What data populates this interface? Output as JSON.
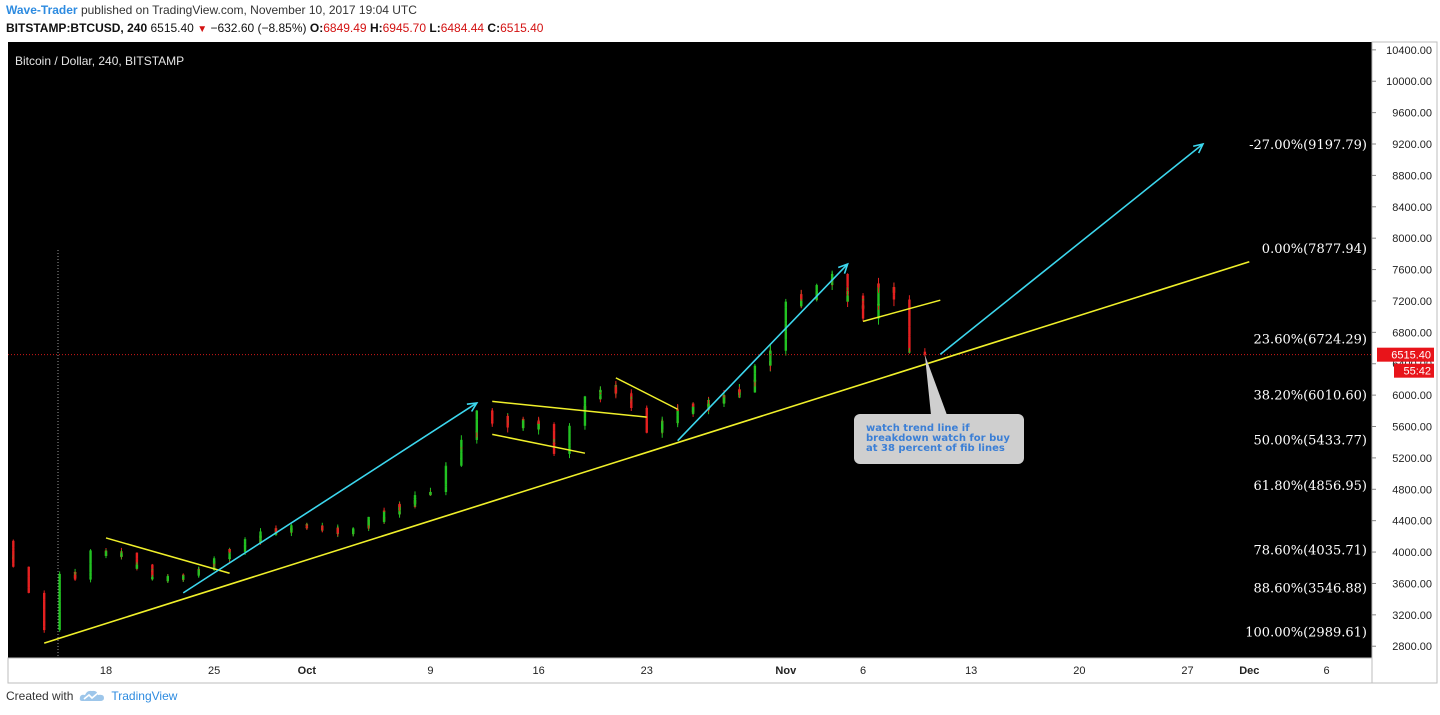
{
  "header": {
    "author": "Wave-Trader",
    "published": "published on TradingView.com, November 10, 2017 19:04 UTC",
    "symbol": "BITSTAMP:BTCUSD, 240",
    "last": "6515.40",
    "change": "−632.60 (−8.85%)",
    "o_label": "O:",
    "o_val": "6849.49",
    "h_label": "H:",
    "h_val": "6945.70",
    "l_label": "L:",
    "l_val": "6484.44",
    "c_label": "C:",
    "c_val": "6515.40"
  },
  "footer": {
    "created_with": "Created with",
    "brand": "TradingView"
  },
  "colors": {
    "background": "#000000",
    "up": "#22c322",
    "down": "#e52020",
    "trendline": "#f0f02a",
    "arrow": "#3cd7ee",
    "price_tag": "#e8141a",
    "axis_text": "#222222",
    "fib_text": "#ffffff",
    "annotation_bg": "#cfcfcf",
    "annotation_text": "#3b7fd6"
  },
  "chart_data": {
    "type": "candlestick",
    "title": "Bitcoin / Dollar, 240, BITSTAMP",
    "ylim": [
      2650,
      10500
    ],
    "y_ticks": [
      "10400.00",
      "10000.00",
      "9600.00",
      "9200.00",
      "8800.00",
      "8400.00",
      "8000.00",
      "7600.00",
      "7200.00",
      "6800.00",
      "6400.00",
      "6000.00",
      "5600.00",
      "5200.00",
      "4800.00",
      "4400.00",
      "4000.00",
      "3600.00",
      "3200.00",
      "2800.00"
    ],
    "x_ticks": [
      "18",
      "25",
      "Oct",
      "9",
      "16",
      "23",
      "Nov",
      "6",
      "13",
      "20",
      "27",
      "Dec",
      "6"
    ],
    "x_tick_dates": [
      "2017-09-18",
      "2017-09-25",
      "2017-10-01",
      "2017-10-09",
      "2017-10-16",
      "2017-10-23",
      "2017-11-01",
      "2017-11-06",
      "2017-11-13",
      "2017-11-20",
      "2017-11-27",
      "2017-12-01",
      "2017-12-06"
    ],
    "last_price": "6515.40",
    "countdown": "55:42",
    "price_path": [
      [
        "2017-09-10",
        4250
      ],
      [
        "2017-09-12",
        4100
      ],
      [
        "2017-09-14",
        3500
      ],
      [
        "2017-09-15",
        2990
      ],
      [
        "2017-09-16",
        3750
      ],
      [
        "2017-09-17",
        3650
      ],
      [
        "2017-09-18",
        4000
      ],
      [
        "2017-09-20",
        3950
      ],
      [
        "2017-09-22",
        3650
      ],
      [
        "2017-09-24",
        3700
      ],
      [
        "2017-09-26",
        3900
      ],
      [
        "2017-09-28",
        4150
      ],
      [
        "2017-10-01",
        4350
      ],
      [
        "2017-10-04",
        4250
      ],
      [
        "2017-10-06",
        4400
      ],
      [
        "2017-10-08",
        4600
      ],
      [
        "2017-10-10",
        4800
      ],
      [
        "2017-10-12",
        5400
      ],
      [
        "2017-10-13",
        5750
      ],
      [
        "2017-10-15",
        5650
      ],
      [
        "2017-10-17",
        5600
      ],
      [
        "2017-10-18",
        5250
      ],
      [
        "2017-10-19",
        5650
      ],
      [
        "2017-10-20",
        5950
      ],
      [
        "2017-10-21",
        6100
      ],
      [
        "2017-10-23",
        5900
      ],
      [
        "2017-10-24",
        5550
      ],
      [
        "2017-10-26",
        5800
      ],
      [
        "2017-10-28",
        5900
      ],
      [
        "2017-10-30",
        6100
      ],
      [
        "2017-11-01",
        6600
      ],
      [
        "2017-11-02",
        7150
      ],
      [
        "2017-11-04",
        7400
      ],
      [
        "2017-11-05",
        7500
      ],
      [
        "2017-11-06",
        7200
      ],
      [
        "2017-11-07",
        7050
      ],
      [
        "2017-11-08",
        7450
      ],
      [
        "2017-11-09",
        7150
      ],
      [
        "2017-11-10",
        6515
      ]
    ],
    "fib_levels": [
      {
        "label": "-27.00%(9197.79)",
        "price": 9197.79
      },
      {
        "label": "0.00%(7877.94)",
        "price": 7877.94
      },
      {
        "label": "23.60%(6724.29)",
        "price": 6724.29
      },
      {
        "label": "38.20%(6010.60)",
        "price": 6010.6
      },
      {
        "label": "50.00%(5433.77)",
        "price": 5433.77
      },
      {
        "label": "61.80%(4856.95)",
        "price": 4856.95
      },
      {
        "label": "78.60%(4035.71)",
        "price": 4035.71
      },
      {
        "label": "88.60%(3546.88)",
        "price": 3546.88
      },
      {
        "label": "100.00%(2989.61)",
        "price": 2989.61
      }
    ],
    "annotation": {
      "lines": [
        "watch trend line if",
        "breakdown watch for buy",
        "at 38 percent of fib lines"
      ]
    }
  }
}
